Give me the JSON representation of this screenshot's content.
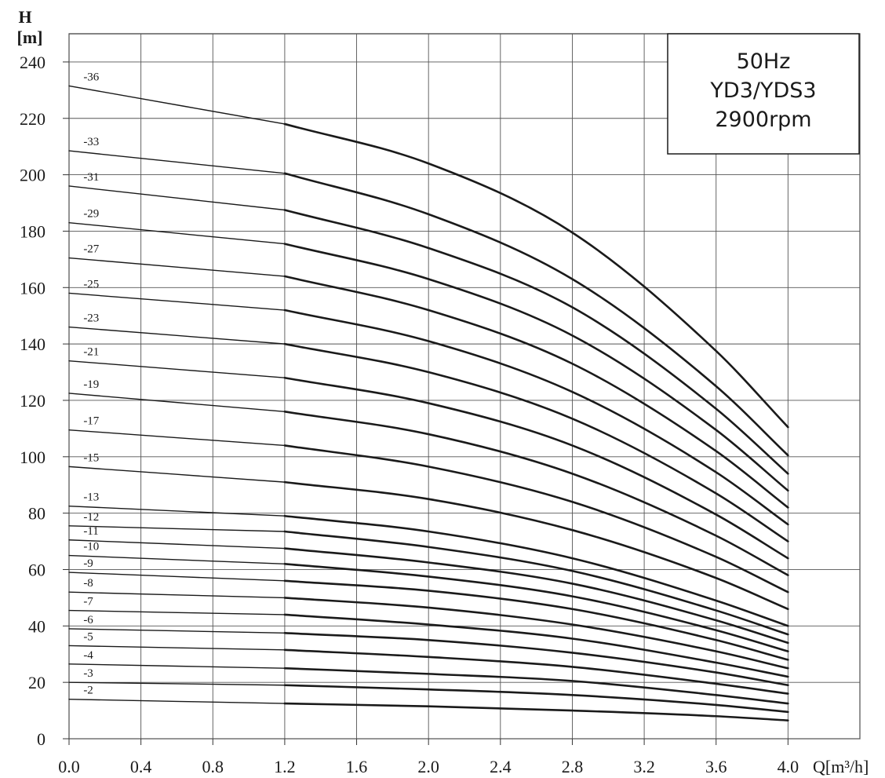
{
  "chart_data": {
    "type": "line",
    "title": "",
    "xlabel": "Q[m³/h]",
    "ylabel_line1": "H",
    "ylabel_line2": "[m]",
    "xlim": [
      0,
      4.4
    ],
    "ylim": [
      0,
      250
    ],
    "x_ticks": [
      "0.0",
      "0.4",
      "0.8",
      "1.2",
      "1.6",
      "2.0",
      "2.4",
      "2.8",
      "3.2",
      "3.6",
      "4.0"
    ],
    "y_ticks": [
      "0",
      "20",
      "40",
      "60",
      "80",
      "100",
      "120",
      "140",
      "160",
      "180",
      "200",
      "220",
      "240"
    ],
    "grid": true,
    "legend": "none",
    "info_box": {
      "lines": [
        "50Hz",
        "YD3/YDS3",
        "2900rpm"
      ],
      "placement": "top-right"
    },
    "x": [
      0.0,
      1.2,
      2.0,
      2.8,
      3.6,
      4.0
    ],
    "series": [
      {
        "name": "-36",
        "values": [
          231.5,
          218,
          204,
          179.5,
          137.5,
          110.5
        ]
      },
      {
        "name": "-33",
        "values": [
          208.5,
          200.5,
          186,
          163,
          125,
          100.5
        ]
      },
      {
        "name": "-31",
        "values": [
          196,
          187.5,
          174,
          153,
          117,
          94
        ]
      },
      {
        "name": "-29",
        "values": [
          183,
          175.5,
          163,
          143,
          109.5,
          88
        ]
      },
      {
        "name": "-27",
        "values": [
          170.5,
          164,
          152,
          133,
          102,
          82
        ]
      },
      {
        "name": "-25",
        "values": [
          158,
          152,
          141,
          123,
          94.5,
          76
        ]
      },
      {
        "name": "-23",
        "values": [
          146,
          140,
          130,
          113.5,
          87,
          70
        ]
      },
      {
        "name": "-21",
        "values": [
          134,
          128,
          119,
          104,
          79.5,
          64
        ]
      },
      {
        "name": "-19",
        "values": [
          122.5,
          116,
          108,
          94,
          72,
          58
        ]
      },
      {
        "name": "-17",
        "values": [
          109.5,
          104,
          96.5,
          84,
          64.5,
          52
        ]
      },
      {
        "name": "-15",
        "values": [
          96.5,
          91,
          85,
          74,
          57,
          46
        ]
      },
      {
        "name": "-13",
        "values": [
          82.5,
          79,
          73.5,
          64,
          49,
          40
        ]
      },
      {
        "name": "-12",
        "values": [
          75.5,
          73.5,
          68,
          59.5,
          45.5,
          37
        ]
      },
      {
        "name": "-11",
        "values": [
          70.5,
          67.5,
          62.5,
          55,
          42,
          34
        ]
      },
      {
        "name": "-10",
        "values": [
          65,
          62,
          57.5,
          50.5,
          38.5,
          31
        ]
      },
      {
        "name": "-9",
        "values": [
          59,
          56,
          52.5,
          46,
          35,
          28
        ]
      },
      {
        "name": "-8",
        "values": [
          52,
          50,
          46.5,
          40.5,
          31,
          25
        ]
      },
      {
        "name": "-7",
        "values": [
          45.5,
          44,
          40.5,
          35.5,
          27,
          22
        ]
      },
      {
        "name": "-6",
        "values": [
          39,
          37.5,
          35,
          30.5,
          23.5,
          19
        ]
      },
      {
        "name": "-5",
        "values": [
          33,
          31.5,
          29,
          25.5,
          19.5,
          16
        ]
      },
      {
        "name": "-4",
        "values": [
          26.5,
          25,
          23,
          20.5,
          15.5,
          12.5
        ]
      },
      {
        "name": "-3",
        "values": [
          20,
          19,
          17.5,
          15.5,
          12,
          9.5
        ]
      },
      {
        "name": "-2",
        "values": [
          14,
          12.5,
          11.5,
          10,
          8,
          6.5
        ]
      }
    ]
  }
}
